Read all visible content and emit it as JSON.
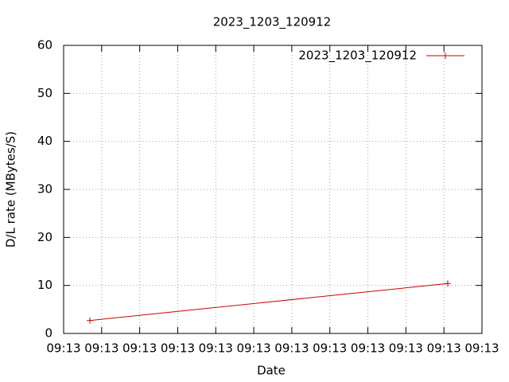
{
  "chart_data": {
    "type": "line",
    "title": "2023_1203_120912",
    "xlabel": "Date",
    "ylabel": "D/L rate (MBytes/S)",
    "x": [
      0.69,
      10.1
    ],
    "series": [
      {
        "name": "2023_1203_120912",
        "color": "#cc0000",
        "values": [
          2.7,
          10.4
        ]
      }
    ],
    "xlim": [
      0,
      11
    ],
    "xticks": [
      {
        "value": 0,
        "label": "09:13"
      },
      {
        "value": 1,
        "label": "09:13"
      },
      {
        "value": 2,
        "label": "09:13"
      },
      {
        "value": 3,
        "label": "09:13"
      },
      {
        "value": 4,
        "label": "09:13"
      },
      {
        "value": 5,
        "label": "09:13"
      },
      {
        "value": 6,
        "label": "09:13"
      },
      {
        "value": 7,
        "label": "09:13"
      },
      {
        "value": 8,
        "label": "09:13"
      },
      {
        "value": 9,
        "label": "09:13"
      },
      {
        "value": 10,
        "label": "09:13"
      },
      {
        "value": 11,
        "label": "09:13"
      }
    ],
    "ylim": [
      0,
      60
    ],
    "yticks": [
      0,
      10,
      20,
      30,
      40,
      50,
      60
    ],
    "grid": true,
    "legend": "top-right"
  }
}
